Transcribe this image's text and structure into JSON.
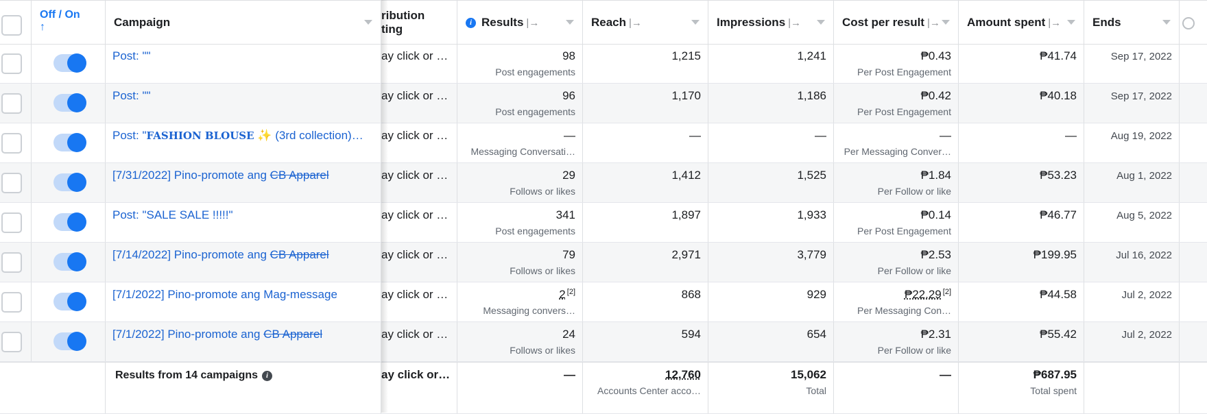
{
  "header": {
    "off_on": "Off / On",
    "sort_icon": "arrow-up-icon",
    "campaign": "Campaign",
    "attribution_line1": "ribution",
    "attribution_line2": "ting",
    "results": "Results",
    "reach": "Reach",
    "impressions": "Impressions",
    "cost_per_result": "Cost per result",
    "amount_spent": "Amount spent",
    "ends": "Ends",
    "column_arrow": "|→"
  },
  "rows": [
    {
      "campaign": "Post: \"\"",
      "attribution": "ay click or 1…",
      "results": "98",
      "results_sub": "Post engagements",
      "reach": "1,215",
      "impressions": "1,241",
      "cost": "₱0.43",
      "cost_sub": "Per Post Engagement",
      "amount": "₱41.74",
      "ends": "Sep 17, 2022"
    },
    {
      "campaign": "Post: \"\"",
      "attribution": "ay click or 1…",
      "results": "96",
      "results_sub": "Post engagements",
      "reach": "1,170",
      "impressions": "1,186",
      "cost": "₱0.42",
      "cost_sub": "Per Post Engagement",
      "amount": "₱40.18",
      "ends": "Sep 17, 2022"
    },
    {
      "campaign_prefix": "Post: \"",
      "campaign_styled": "FASHION BLOUSE",
      "campaign_emoji": "✨",
      "campaign_suffix": "(3rd collection)…",
      "attribution": "ay click or 1…",
      "results": "—",
      "results_sub": "Messaging Conversati…",
      "reach": "—",
      "impressions": "—",
      "cost": "—",
      "cost_sub": "Per Messaging Conver…",
      "amount": "—",
      "ends": "Aug 19, 2022"
    },
    {
      "campaign_prefix": "[7/31/2022] Pino-promote ang ",
      "campaign_struck": "CB Apparel",
      "attribution": "ay click or 1…",
      "results": "29",
      "results_sub": "Follows or likes",
      "reach": "1,412",
      "impressions": "1,525",
      "cost": "₱1.84",
      "cost_sub": "Per Follow or like",
      "amount": "₱53.23",
      "ends": "Aug 1, 2022"
    },
    {
      "campaign": "Post: \"SALE SALE !!!!!\"",
      "attribution": "ay click or 1…",
      "results": "341",
      "results_sub": "Post engagements",
      "reach": "1,897",
      "impressions": "1,933",
      "cost": "₱0.14",
      "cost_sub": "Per Post Engagement",
      "amount": "₱46.77",
      "ends": "Aug 5, 2022"
    },
    {
      "campaign_prefix": "[7/14/2022] Pino-promote ang ",
      "campaign_struck": "CB Apparel",
      "attribution": "ay click or 1…",
      "results": "79",
      "results_sub": "Follows or likes",
      "reach": "2,971",
      "impressions": "3,779",
      "cost": "₱2.53",
      "cost_sub": "Per Follow or like",
      "amount": "₱199.95",
      "ends": "Jul 16, 2022"
    },
    {
      "campaign": "[7/1/2022] Pino-promote ang Mag-message",
      "attribution": "ay click or 1…",
      "results": "2",
      "results_note": "[2]",
      "results_sub": "Messaging convers…",
      "reach": "868",
      "impressions": "929",
      "cost": "₱22.29",
      "cost_note": "[2]",
      "cost_sub": "Per Messaging Con…",
      "amount": "₱44.58",
      "ends": "Jul 2, 2022"
    },
    {
      "campaign_prefix": "[7/1/2022] Pino-promote ang ",
      "campaign_struck": "CB Apparel",
      "attribution": "ay click or 1…",
      "results": "24",
      "results_sub": "Follows or likes",
      "reach": "594",
      "impressions": "654",
      "cost": "₱2.31",
      "cost_sub": "Per Follow or like",
      "amount": "₱55.42",
      "ends": "Jul 2, 2022"
    }
  ],
  "footer": {
    "label": "Results from 14 campaigns",
    "attribution": "ay click or …",
    "results": "—",
    "reach": "12,760",
    "reach_sub": "Accounts Center acco…",
    "impressions": "15,062",
    "impressions_sub": "Total",
    "cost": "—",
    "amount": "₱687.95",
    "amount_sub": "Total spent"
  }
}
